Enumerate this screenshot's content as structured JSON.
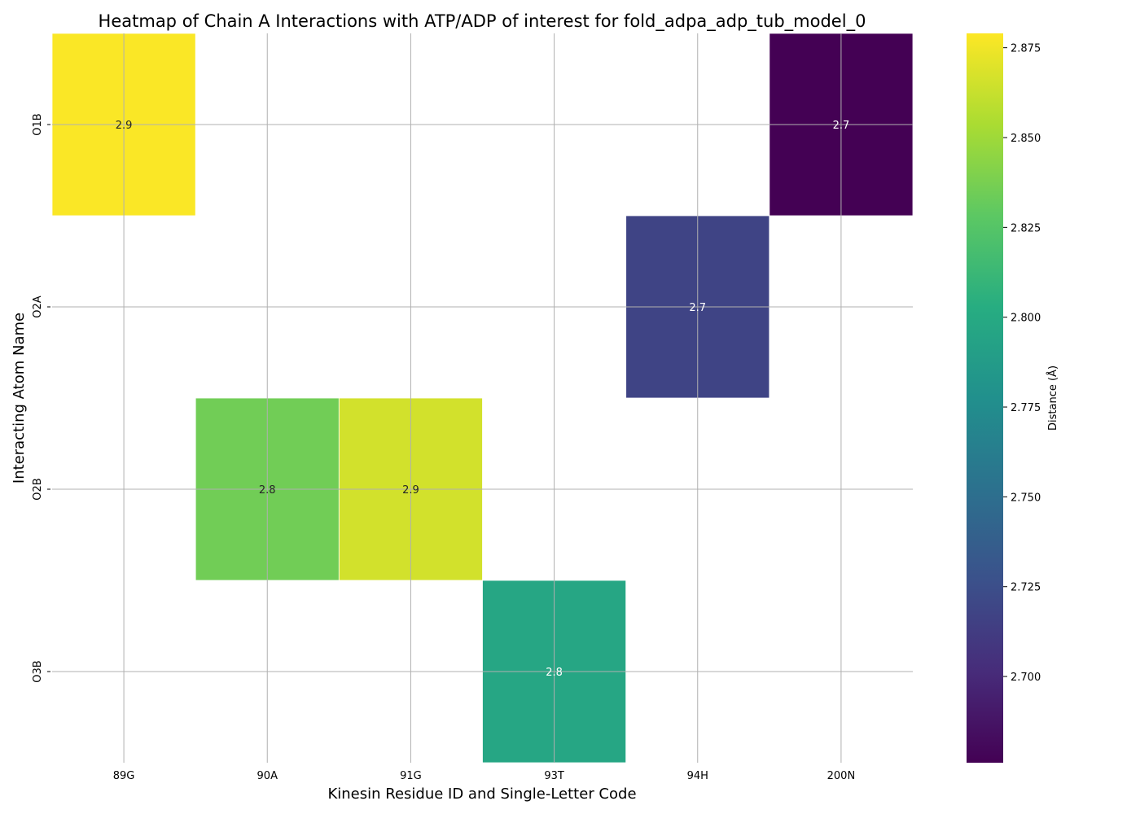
{
  "chart_data": {
    "type": "heatmap",
    "title": "Heatmap of Chain A Interactions with ATP/ADP of interest for fold_adpa_adp_tub_model_0",
    "xlabel": "Kinesin Residue ID and Single-Letter Code",
    "ylabel": "Interacting Atom Name",
    "x_categories": [
      "89G",
      "90A",
      "91G",
      "93T",
      "94H",
      "200N"
    ],
    "y_categories": [
      "O1B",
      "O2A",
      "O2B",
      "O3B"
    ],
    "cells": [
      {
        "x": "89G",
        "y": "O1B",
        "value": 2.878,
        "label": "2.9"
      },
      {
        "x": "200N",
        "y": "O1B",
        "value": 2.676,
        "label": "2.7"
      },
      {
        "x": "94H",
        "y": "O2A",
        "value": 2.718,
        "label": "2.7"
      },
      {
        "x": "90A",
        "y": "O2B",
        "value": 2.835,
        "label": "2.8"
      },
      {
        "x": "91G",
        "y": "O2B",
        "value": 2.866,
        "label": "2.9"
      },
      {
        "x": "93T",
        "y": "O3B",
        "value": 2.797,
        "label": "2.8"
      }
    ],
    "colorbar": {
      "label": "Distance (Å)",
      "colormap": "viridis",
      "vmin": 2.676,
      "vmax": 2.879,
      "ticks": [
        "2.700",
        "2.725",
        "2.750",
        "2.775",
        "2.800",
        "2.825",
        "2.850",
        "2.875"
      ]
    },
    "grid": true
  }
}
